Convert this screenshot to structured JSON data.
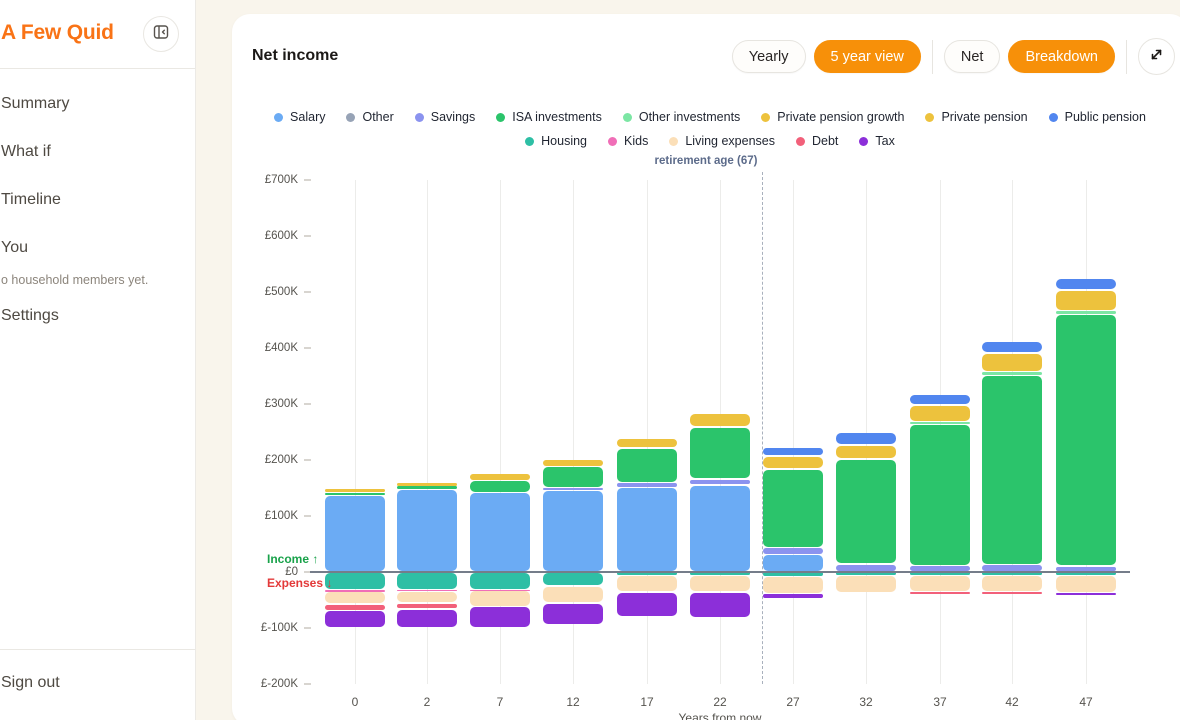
{
  "sidebar": {
    "logo": "A Few Quid",
    "collapse_icon": "panel-collapse-left-icon",
    "items": [
      {
        "label": "Summary"
      },
      {
        "label": "What if"
      },
      {
        "label": "Timeline"
      },
      {
        "label": "You"
      },
      {
        "label": "Settings"
      }
    ],
    "you_note": "o household members yet.",
    "sign_out": "Sign out"
  },
  "header": {
    "title": "Net income",
    "buttons": {
      "yearly": "Yearly",
      "five_year": "5 year view",
      "net": "Net",
      "breakdown": "Breakdown"
    },
    "active_view": "5 year view",
    "active_mode": "Breakdown",
    "expand_icon": "expand-diagonal-icon",
    "accent_color": "#f79009"
  },
  "legend": {
    "row1": [
      {
        "key": "salary",
        "label": "Salary"
      },
      {
        "key": "other",
        "label": "Other"
      },
      {
        "key": "savings",
        "label": "Savings"
      },
      {
        "key": "isa",
        "label": "ISA investments"
      },
      {
        "key": "other_investments",
        "label": "Other investments"
      },
      {
        "key": "pension_growth",
        "label": "Private pension growth"
      },
      {
        "key": "private_pension",
        "label": "Private pension"
      },
      {
        "key": "public_pension",
        "label": "Public pension"
      }
    ],
    "row2": [
      {
        "key": "housing",
        "label": "Housing"
      },
      {
        "key": "kids",
        "label": "Kids"
      },
      {
        "key": "living",
        "label": "Living expenses"
      },
      {
        "key": "debt",
        "label": "Debt"
      },
      {
        "key": "tax",
        "label": "Tax"
      }
    ]
  },
  "chart_data": {
    "type": "bar",
    "subtype": "stacked-diverging",
    "title": "Net income",
    "units": "GBP thousands",
    "xlabel": "Years from now",
    "ylim": [
      -200,
      700
    ],
    "yticks": [
      {
        "value": 700,
        "label": "£700K"
      },
      {
        "value": 600,
        "label": "£600K"
      },
      {
        "value": 500,
        "label": "£500K"
      },
      {
        "value": 400,
        "label": "£400K"
      },
      {
        "value": 300,
        "label": "£300K"
      },
      {
        "value": 200,
        "label": "£200K"
      },
      {
        "value": 100,
        "label": "£100K"
      },
      {
        "value": 0,
        "label": "£0"
      },
      {
        "value": -100,
        "label": "£-100K"
      },
      {
        "value": -200,
        "label": "£-200K"
      }
    ],
    "colors": {
      "salary": "#6babf4",
      "other": "#97a3b6",
      "savings": "#8b93ef",
      "isa": "#2bc46b",
      "other_investments": "#7ce6a4",
      "pension_growth": "#edc23d",
      "private_pension": "#edc23d",
      "public_pension": "#5186ef",
      "housing": "#2ebfa5",
      "kids": "#f06eb7",
      "living": "#fbdfb8",
      "debt": "#f2607a",
      "tax": "#8c2fd9"
    },
    "annotations": {
      "retirement_label": "retirement age (67)",
      "retirement_year": 25,
      "income_label": "Income ↑",
      "expenses_label": "Expenses ↓"
    },
    "bars": [
      {
        "year": "0",
        "pos": {
          "salary": 137,
          "isa": 5,
          "pension_growth": 6
        },
        "neg": {
          "housing": 32,
          "kids": 3,
          "living": 22,
          "debt": 12,
          "tax": 31
        }
      },
      {
        "year": "2",
        "pos": {
          "salary": 148,
          "isa": 6,
          "pension_growth": 5
        },
        "neg": {
          "housing": 31,
          "kids": 3,
          "living": 21,
          "debt": 11,
          "tax": 33
        }
      },
      {
        "year": "7",
        "pos": {
          "salary": 142,
          "isa": 21,
          "pension_growth": 13
        },
        "neg": {
          "housing": 31,
          "kids": 2,
          "living": 29,
          "tax": 38
        }
      },
      {
        "year": "12",
        "pos": {
          "salary": 146,
          "savings": 4,
          "isa": 38,
          "pension_growth": 13
        },
        "neg": {
          "housing": 25,
          "living": 30,
          "tax": 40
        }
      },
      {
        "year": "17",
        "pos": {
          "salary": 151,
          "savings": 9,
          "isa": 61,
          "pension_growth": 18
        },
        "neg": {
          "housing": 6,
          "living": 30,
          "tax": 44
        }
      },
      {
        "year": "22",
        "pos": {
          "salary": 155,
          "savings": 11,
          "isa": 93,
          "pension_growth": 25
        },
        "neg": {
          "housing": 6,
          "living": 30,
          "tax": 46
        }
      },
      {
        "year": "27",
        "pos": {
          "salary": 31,
          "savings": 13,
          "isa": 140,
          "private_pension": 23,
          "public_pension": 16
        },
        "neg": {
          "housing": 7,
          "living": 32,
          "tax": 8
        }
      },
      {
        "year": "32",
        "pos": {
          "savings": 14,
          "isa": 188,
          "private_pension": 25,
          "public_pension": 23
        },
        "neg": {
          "housing": 6,
          "living": 31
        }
      },
      {
        "year": "37",
        "pos": {
          "savings": 12,
          "isa": 251,
          "other_investments": 5,
          "private_pension": 30,
          "public_pension": 20
        },
        "neg": {
          "housing": 6,
          "living": 30,
          "debt": 3
        }
      },
      {
        "year": "42",
        "pos": {
          "savings": 13,
          "isa": 339,
          "other_investments": 5,
          "private_pension": 34,
          "public_pension": 21
        },
        "neg": {
          "housing": 6,
          "living": 30,
          "debt": 3
        }
      },
      {
        "year": "47",
        "pos": {
          "savings": 11,
          "isa": 450,
          "other_investments": 5,
          "private_pension": 38,
          "public_pension": 21
        },
        "neg": {
          "housing": 6,
          "living": 31,
          "tax": 4
        }
      }
    ]
  }
}
